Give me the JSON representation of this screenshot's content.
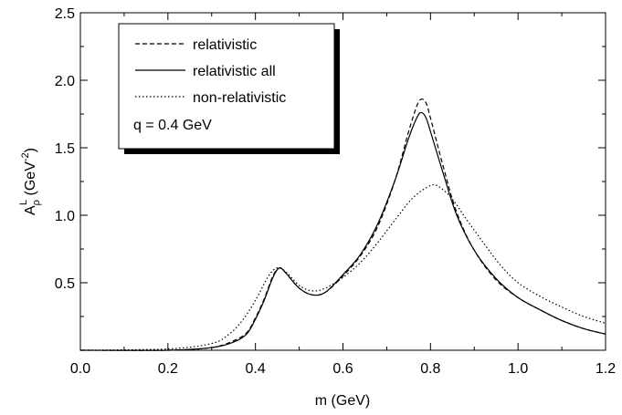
{
  "chart_data": {
    "type": "line",
    "xlabel": "m (GeV)",
    "ylabel": {
      "base": "A",
      "sub": "ρ",
      "sup": "L",
      "unit_open": " (GeV",
      "unit_exp": "-2",
      "unit_close": ")"
    },
    "xlim": [
      0.0,
      1.2
    ],
    "ylim": [
      0.0,
      2.5
    ],
    "x_ticks": [
      0.0,
      0.2,
      0.4,
      0.6,
      0.8,
      1.0,
      1.2
    ],
    "x_tick_labels": [
      "0.0",
      "0.2",
      "0.4",
      "0.6",
      "0.8",
      "1.0",
      "1.2"
    ],
    "y_ticks": [
      0.5,
      1.0,
      1.5,
      2.0,
      2.5
    ],
    "y_tick_labels": [
      "0.5",
      "1.0",
      "1.5",
      "2.0",
      "2.5"
    ],
    "grid": false,
    "legend_position": "top-left",
    "annotation": "q = 0.4 GeV",
    "series": [
      {
        "name": "relativistic",
        "style": "dashed",
        "color": "#000000",
        "points": [
          [
            0.0,
            0.0
          ],
          [
            0.2,
            0.0
          ],
          [
            0.3,
            0.02
          ],
          [
            0.35,
            0.07
          ],
          [
            0.38,
            0.13
          ],
          [
            0.4,
            0.24
          ],
          [
            0.42,
            0.38
          ],
          [
            0.44,
            0.55
          ],
          [
            0.455,
            0.61
          ],
          [
            0.47,
            0.57
          ],
          [
            0.5,
            0.46
          ],
          [
            0.53,
            0.41
          ],
          [
            0.56,
            0.43
          ],
          [
            0.6,
            0.55
          ],
          [
            0.64,
            0.7
          ],
          [
            0.68,
            0.92
          ],
          [
            0.72,
            1.27
          ],
          [
            0.75,
            1.62
          ],
          [
            0.77,
            1.82
          ],
          [
            0.78,
            1.86
          ],
          [
            0.79,
            1.83
          ],
          [
            0.8,
            1.72
          ],
          [
            0.83,
            1.35
          ],
          [
            0.86,
            1.02
          ],
          [
            0.9,
            0.74
          ],
          [
            0.95,
            0.52
          ],
          [
            1.0,
            0.39
          ],
          [
            1.05,
            0.3
          ],
          [
            1.1,
            0.22
          ],
          [
            1.15,
            0.16
          ],
          [
            1.2,
            0.12
          ]
        ]
      },
      {
        "name": "relativistic all",
        "style": "solid",
        "color": "#000000",
        "points": [
          [
            0.0,
            0.0
          ],
          [
            0.2,
            0.0
          ],
          [
            0.3,
            0.02
          ],
          [
            0.35,
            0.06
          ],
          [
            0.38,
            0.12
          ],
          [
            0.4,
            0.23
          ],
          [
            0.42,
            0.37
          ],
          [
            0.44,
            0.54
          ],
          [
            0.455,
            0.61
          ],
          [
            0.47,
            0.57
          ],
          [
            0.5,
            0.46
          ],
          [
            0.53,
            0.41
          ],
          [
            0.56,
            0.43
          ],
          [
            0.6,
            0.56
          ],
          [
            0.64,
            0.71
          ],
          [
            0.68,
            0.94
          ],
          [
            0.72,
            1.27
          ],
          [
            0.75,
            1.57
          ],
          [
            0.77,
            1.73
          ],
          [
            0.78,
            1.76
          ],
          [
            0.79,
            1.72
          ],
          [
            0.8,
            1.62
          ],
          [
            0.83,
            1.3
          ],
          [
            0.86,
            1.0
          ],
          [
            0.9,
            0.74
          ],
          [
            0.95,
            0.53
          ],
          [
            1.0,
            0.39
          ],
          [
            1.05,
            0.3
          ],
          [
            1.1,
            0.22
          ],
          [
            1.15,
            0.16
          ],
          [
            1.2,
            0.12
          ]
        ]
      },
      {
        "name": "non-relativistic",
        "style": "dotted",
        "color": "#000000",
        "points": [
          [
            0.0,
            0.0
          ],
          [
            0.2,
            0.01
          ],
          [
            0.3,
            0.05
          ],
          [
            0.34,
            0.12
          ],
          [
            0.37,
            0.22
          ],
          [
            0.4,
            0.37
          ],
          [
            0.43,
            0.55
          ],
          [
            0.45,
            0.61
          ],
          [
            0.47,
            0.58
          ],
          [
            0.5,
            0.48
          ],
          [
            0.53,
            0.44
          ],
          [
            0.56,
            0.46
          ],
          [
            0.6,
            0.54
          ],
          [
            0.64,
            0.65
          ],
          [
            0.68,
            0.8
          ],
          [
            0.72,
            0.97
          ],
          [
            0.76,
            1.13
          ],
          [
            0.8,
            1.22
          ],
          [
            0.82,
            1.21
          ],
          [
            0.85,
            1.12
          ],
          [
            0.88,
            0.98
          ],
          [
            0.92,
            0.8
          ],
          [
            0.96,
            0.63
          ],
          [
            1.0,
            0.5
          ],
          [
            1.05,
            0.4
          ],
          [
            1.1,
            0.32
          ],
          [
            1.15,
            0.25
          ],
          [
            1.2,
            0.2
          ]
        ]
      }
    ]
  }
}
